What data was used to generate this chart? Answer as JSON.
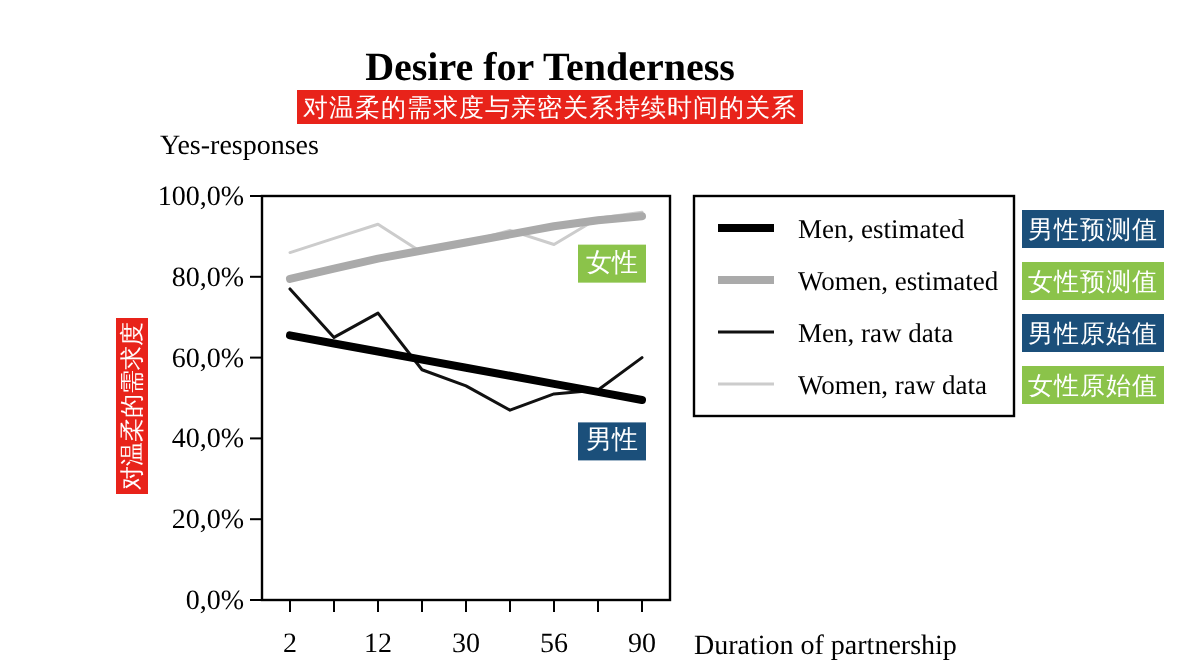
{
  "chart_data": {
    "type": "line",
    "title": "Desire for Tenderness",
    "subtitle": "对温柔的需求度与亲密关系持续时间的关系",
    "xlabel": "Duration of partnership",
    "ylabel": "Yes-responses",
    "categories": [
      "2",
      null,
      "12",
      null,
      "30",
      null,
      "56",
      null,
      "90"
    ],
    "series": [
      {
        "name": "Men, estimated",
        "color": "#000000",
        "values": [
          65.5,
          63.5,
          61.5,
          59.5,
          57.5,
          55.5,
          53.5,
          51.5,
          49.5
        ]
      },
      {
        "name": "Women, estimated",
        "color": "#aaaaaa",
        "values": [
          79.5,
          82,
          84.5,
          86.5,
          88.5,
          90.5,
          92.5,
          94,
          95
        ]
      },
      {
        "name": "Men, raw data",
        "color": "#111111",
        "values": [
          77,
          65,
          71,
          57,
          53,
          47,
          51,
          52,
          60
        ]
      },
      {
        "name": "Women, raw data",
        "color": "#cccccc",
        "values": [
          86,
          89.5,
          93,
          86,
          88.5,
          91.5,
          88,
          94.5,
          96
        ]
      }
    ],
    "ylim": [
      0,
      100
    ],
    "yticks": [
      {
        "value": 0,
        "label": "0,0%"
      },
      {
        "value": 20,
        "label": "20,0%"
      },
      {
        "value": 40,
        "label": "40,0%"
      },
      {
        "value": 60,
        "label": "60,0%"
      },
      {
        "value": 80,
        "label": "80,0%"
      },
      {
        "value": 100,
        "label": "100,0%"
      }
    ],
    "annotations": [
      "对温柔的需求度",
      "男性预测值",
      "女性预测值",
      "男性原始值",
      "女性原始值",
      {
        "text": "女性",
        "y": 84
      },
      {
        "text": "男性",
        "y": 40
      }
    ],
    "legend": "right",
    "grid": false,
    "marker": "none",
    "line_style": "solid"
  }
}
